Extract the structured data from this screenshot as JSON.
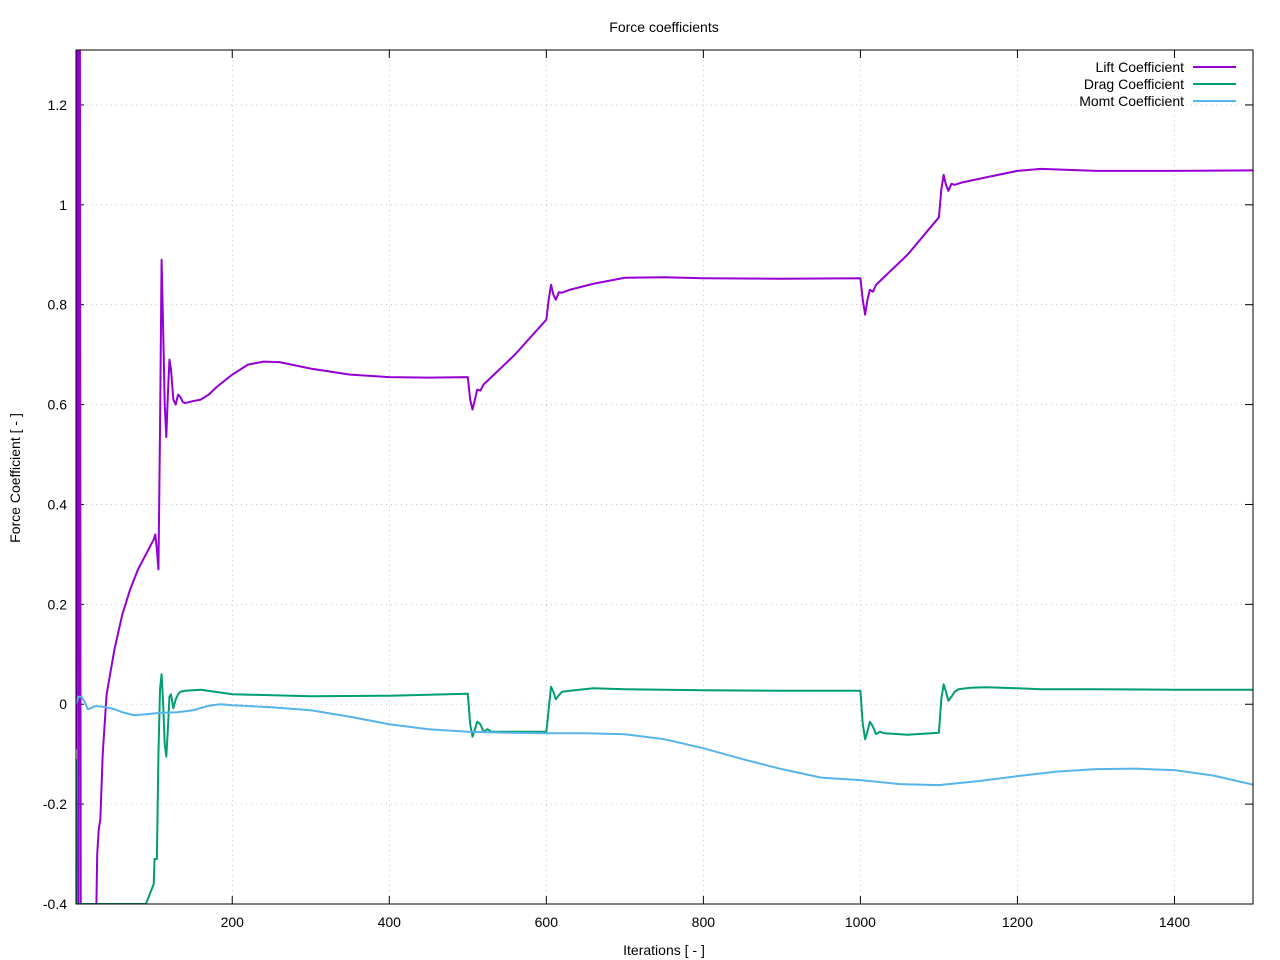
{
  "chart_data": {
    "type": "line",
    "title": "Force coefficients",
    "xlabel": "Iterations [ - ]",
    "ylabel": "Force Coefficient [ - ]",
    "xlim": [
      1,
      1500
    ],
    "ylim": [
      -0.4,
      1.31
    ],
    "x_ticks": [
      200,
      400,
      600,
      800,
      1000,
      1200,
      1400
    ],
    "y_ticks": [
      -0.4,
      -0.2,
      0,
      0.2,
      0.4,
      0.6,
      0.8,
      1,
      1.2
    ],
    "x_tick_labels": [
      "200",
      "400",
      "600",
      "800",
      "1000",
      "1200",
      "1400"
    ],
    "y_tick_labels": [
      "-0.4",
      "-0.2",
      "0",
      "0.2",
      "0.4",
      "0.6",
      "0.8",
      "1",
      "1.2"
    ],
    "grid": true,
    "legend_position": "top-right",
    "series": [
      {
        "name": "Lift Coefficient",
        "color": "#9400d3",
        "points": [
          [
            1,
            -0.09
          ],
          [
            2,
            1.31
          ],
          [
            3,
            1.31
          ],
          [
            4,
            -0.4
          ],
          [
            5,
            1.31
          ],
          [
            6,
            1.31
          ],
          [
            7,
            -0.4
          ],
          [
            27,
            -0.4
          ],
          [
            28,
            -0.3
          ],
          [
            30,
            -0.25
          ],
          [
            32,
            -0.23
          ],
          [
            35,
            -0.1
          ],
          [
            40,
            0.02
          ],
          [
            50,
            0.11
          ],
          [
            60,
            0.18
          ],
          [
            70,
            0.23
          ],
          [
            80,
            0.27
          ],
          [
            90,
            0.3
          ],
          [
            100,
            0.33
          ],
          [
            102,
            0.34
          ],
          [
            104,
            0.31
          ],
          [
            106,
            0.27
          ],
          [
            108,
            0.55
          ],
          [
            110,
            0.89
          ],
          [
            112,
            0.75
          ],
          [
            114,
            0.6
          ],
          [
            116,
            0.535
          ],
          [
            118,
            0.62
          ],
          [
            120,
            0.69
          ],
          [
            122,
            0.67
          ],
          [
            125,
            0.61
          ],
          [
            128,
            0.6
          ],
          [
            131,
            0.62
          ],
          [
            134,
            0.615
          ],
          [
            137,
            0.605
          ],
          [
            140,
            0.603
          ],
          [
            150,
            0.607
          ],
          [
            160,
            0.61
          ],
          [
            170,
            0.62
          ],
          [
            180,
            0.635
          ],
          [
            200,
            0.66
          ],
          [
            220,
            0.68
          ],
          [
            240,
            0.686
          ],
          [
            260,
            0.685
          ],
          [
            300,
            0.672
          ],
          [
            350,
            0.66
          ],
          [
            400,
            0.655
          ],
          [
            450,
            0.654
          ],
          [
            500,
            0.655
          ],
          [
            503,
            0.61
          ],
          [
            506,
            0.59
          ],
          [
            509,
            0.61
          ],
          [
            512,
            0.63
          ],
          [
            516,
            0.628
          ],
          [
            520,
            0.64
          ],
          [
            530,
            0.655
          ],
          [
            560,
            0.7
          ],
          [
            600,
            0.77
          ],
          [
            603,
            0.81
          ],
          [
            606,
            0.84
          ],
          [
            609,
            0.82
          ],
          [
            612,
            0.81
          ],
          [
            616,
            0.825
          ],
          [
            620,
            0.824
          ],
          [
            630,
            0.83
          ],
          [
            660,
            0.842
          ],
          [
            700,
            0.854
          ],
          [
            750,
            0.855
          ],
          [
            800,
            0.853
          ],
          [
            900,
            0.852
          ],
          [
            1000,
            0.853
          ],
          [
            1003,
            0.81
          ],
          [
            1006,
            0.78
          ],
          [
            1009,
            0.81
          ],
          [
            1012,
            0.83
          ],
          [
            1016,
            0.826
          ],
          [
            1020,
            0.84
          ],
          [
            1030,
            0.855
          ],
          [
            1060,
            0.9
          ],
          [
            1100,
            0.975
          ],
          [
            1103,
            1.03
          ],
          [
            1106,
            1.06
          ],
          [
            1109,
            1.04
          ],
          [
            1112,
            1.028
          ],
          [
            1116,
            1.042
          ],
          [
            1120,
            1.04
          ],
          [
            1130,
            1.045
          ],
          [
            1160,
            1.055
          ],
          [
            1200,
            1.068
          ],
          [
            1230,
            1.072
          ],
          [
            1300,
            1.068
          ],
          [
            1400,
            1.068
          ],
          [
            1500,
            1.069
          ]
        ]
      },
      {
        "name": "Drag Coefficient",
        "color": "#009e73",
        "points": [
          [
            1,
            -0.11
          ],
          [
            2,
            -0.4
          ],
          [
            90,
            -0.4
          ],
          [
            95,
            -0.38
          ],
          [
            100,
            -0.36
          ],
          [
            101,
            -0.31
          ],
          [
            104,
            -0.31
          ],
          [
            106,
            -0.1
          ],
          [
            108,
            0.03
          ],
          [
            110,
            0.06
          ],
          [
            112,
            0.0
          ],
          [
            114,
            -0.08
          ],
          [
            116,
            -0.105
          ],
          [
            118,
            -0.05
          ],
          [
            120,
            0.015
          ],
          [
            122,
            0.02
          ],
          [
            125,
            -0.008
          ],
          [
            128,
            0.01
          ],
          [
            131,
            0.02
          ],
          [
            134,
            0.025
          ],
          [
            140,
            0.027
          ],
          [
            160,
            0.029
          ],
          [
            200,
            0.02
          ],
          [
            300,
            0.016
          ],
          [
            400,
            0.017
          ],
          [
            500,
            0.021
          ],
          [
            503,
            -0.04
          ],
          [
            506,
            -0.065
          ],
          [
            509,
            -0.05
          ],
          [
            512,
            -0.035
          ],
          [
            516,
            -0.04
          ],
          [
            520,
            -0.055
          ],
          [
            525,
            -0.05
          ],
          [
            530,
            -0.055
          ],
          [
            600,
            -0.055
          ],
          [
            603,
            -0.01
          ],
          [
            606,
            0.035
          ],
          [
            609,
            0.025
          ],
          [
            612,
            0.01
          ],
          [
            616,
            0.018
          ],
          [
            620,
            0.025
          ],
          [
            630,
            0.027
          ],
          [
            660,
            0.032
          ],
          [
            700,
            0.03
          ],
          [
            800,
            0.028
          ],
          [
            900,
            0.027
          ],
          [
            1000,
            0.027
          ],
          [
            1003,
            -0.04
          ],
          [
            1006,
            -0.07
          ],
          [
            1009,
            -0.055
          ],
          [
            1012,
            -0.035
          ],
          [
            1016,
            -0.045
          ],
          [
            1020,
            -0.06
          ],
          [
            1025,
            -0.055
          ],
          [
            1030,
            -0.058
          ],
          [
            1060,
            -0.061
          ],
          [
            1100,
            -0.057
          ],
          [
            1103,
            0.01
          ],
          [
            1106,
            0.04
          ],
          [
            1109,
            0.025
          ],
          [
            1112,
            0.007
          ],
          [
            1116,
            0.015
          ],
          [
            1120,
            0.025
          ],
          [
            1125,
            0.03
          ],
          [
            1140,
            0.033
          ],
          [
            1160,
            0.034
          ],
          [
            1200,
            0.032
          ],
          [
            1230,
            0.03
          ],
          [
            1300,
            0.03
          ],
          [
            1400,
            0.029
          ],
          [
            1500,
            0.029
          ]
        ]
      },
      {
        "name": "Momt Coefficient",
        "color": "#56b4e9",
        "points": [
          [
            1,
            0.0
          ],
          [
            4,
            0.015
          ],
          [
            8,
            0.015
          ],
          [
            12,
            0.005
          ],
          [
            16,
            -0.01
          ],
          [
            20,
            -0.008
          ],
          [
            24,
            -0.004
          ],
          [
            30,
            -0.004
          ],
          [
            40,
            -0.006
          ],
          [
            50,
            -0.01
          ],
          [
            60,
            -0.016
          ],
          [
            75,
            -0.022
          ],
          [
            90,
            -0.02
          ],
          [
            110,
            -0.017
          ],
          [
            130,
            -0.016
          ],
          [
            150,
            -0.012
          ],
          [
            170,
            -0.003
          ],
          [
            185,
            0.0
          ],
          [
            200,
            -0.002
          ],
          [
            250,
            -0.006
          ],
          [
            300,
            -0.012
          ],
          [
            350,
            -0.025
          ],
          [
            400,
            -0.04
          ],
          [
            450,
            -0.05
          ],
          [
            500,
            -0.055
          ],
          [
            550,
            -0.057
          ],
          [
            600,
            -0.058
          ],
          [
            650,
            -0.058
          ],
          [
            700,
            -0.06
          ],
          [
            750,
            -0.07
          ],
          [
            800,
            -0.088
          ],
          [
            850,
            -0.11
          ],
          [
            900,
            -0.13
          ],
          [
            950,
            -0.147
          ],
          [
            1000,
            -0.152
          ],
          [
            1050,
            -0.16
          ],
          [
            1100,
            -0.162
          ],
          [
            1150,
            -0.154
          ],
          [
            1200,
            -0.144
          ],
          [
            1250,
            -0.135
          ],
          [
            1300,
            -0.13
          ],
          [
            1350,
            -0.129
          ],
          [
            1400,
            -0.132
          ],
          [
            1450,
            -0.143
          ],
          [
            1500,
            -0.161
          ]
        ]
      }
    ]
  }
}
